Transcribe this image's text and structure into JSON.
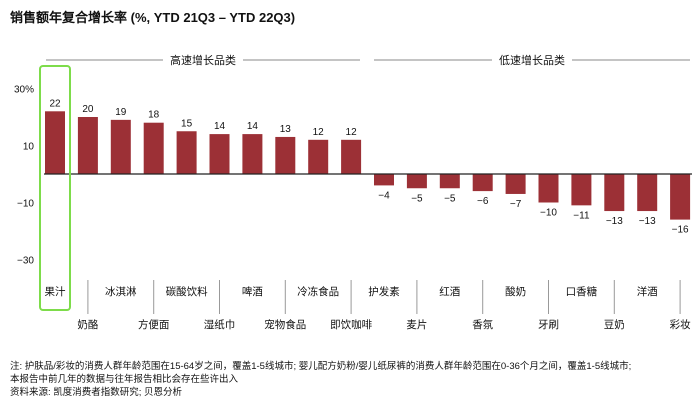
{
  "chart_data": {
    "type": "bar",
    "title": "销售额年复合增长率 (%, YTD 21Q3 – YTD 22Q3)",
    "groups": [
      {
        "label": "高速增长品类",
        "categories": [
          "果汁",
          "奶酪",
          "冰淇淋",
          "方便面",
          "碳酸饮料",
          "湿纸巾",
          "啤酒",
          "宠物食品",
          "冷冻食品",
          "即饮咖啡"
        ]
      },
      {
        "label": "低速增长品类",
        "categories": [
          "护发素",
          "麦片",
          "红酒",
          "香氛",
          "酸奶",
          "牙刷",
          "口香糖",
          "豆奶",
          "洋酒",
          "彩妆"
        ]
      }
    ],
    "categories": [
      "果汁",
      "奶酪",
      "冰淇淋",
      "方便面",
      "碳酸饮料",
      "湿纸巾",
      "啤酒",
      "宠物食品",
      "冷冻食品",
      "即饮咖啡",
      "护发素",
      "麦片",
      "红酒",
      "香氛",
      "酸奶",
      "牙刷",
      "口香糖",
      "豆奶",
      "洋酒",
      "彩妆"
    ],
    "values": [
      22,
      20,
      19,
      18,
      15,
      14,
      14,
      13,
      12,
      12,
      -4,
      -5,
      -5,
      -6,
      -7,
      -10,
      -11,
      -13,
      -13,
      -16
    ],
    "value_labels": [
      "22",
      "20",
      "19",
      "18",
      "15",
      "14",
      "14",
      "13",
      "12",
      "12",
      "−4",
      "−5",
      "−5",
      "−6",
      "−7",
      "−10",
      "−11",
      "−13",
      "−13",
      "−16"
    ],
    "yticks": [
      30,
      10,
      -10,
      -30
    ],
    "ytick_labels": [
      "30%",
      "10",
      "−10",
      "−30"
    ],
    "ylim": [
      -30,
      30
    ],
    "grid": false,
    "highlight": "果汁",
    "colors": {
      "bar": "#9c3036",
      "highlight": "#7ddc4a",
      "axis": "#222222",
      "separator": "#999999"
    }
  },
  "notes": [
    "注: 护肤品/彩妆的消费人群年龄范围在15-64岁之间，覆盖1-5线城市; 婴儿配方奶粉/婴儿纸尿裤的消费人群年龄范围在0-36个月之间，覆盖1-5线城市;",
    "本报告中前几年的数据与往年报告相比会存在些许出入",
    "资料来源: 凯度消费者指数研究; 贝恩分析"
  ]
}
